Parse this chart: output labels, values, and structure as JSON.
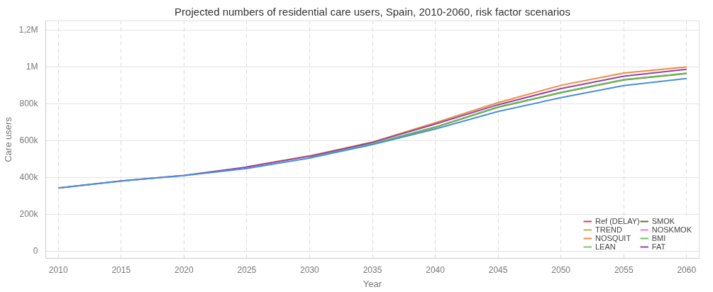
{
  "chart_data": {
    "type": "line",
    "title": "Projected numbers of residential care users, Spain, 2010-2060, risk factor scenarios",
    "xlabel": "Year",
    "ylabel": "Care users",
    "x": [
      2010,
      2015,
      2020,
      2025,
      2030,
      2035,
      2040,
      2045,
      2050,
      2055,
      2060
    ],
    "xlim": [
      2009,
      2061
    ],
    "xticks": [
      2010,
      2015,
      2020,
      2025,
      2030,
      2035,
      2040,
      2045,
      2050,
      2055,
      2060
    ],
    "ylim": [
      -40000,
      1250000
    ],
    "yticks": [
      0,
      {
        "value": 200000,
        "label": "200k"
      },
      {
        "value": 400000,
        "label": "400k"
      },
      {
        "value": 600000,
        "label": "600k"
      },
      {
        "value": 800000,
        "label": "800k"
      },
      {
        "value": 1000000,
        "label": "1M"
      },
      {
        "value": 1200000,
        "label": "1,2M"
      }
    ],
    "grid": true,
    "legend": "bottom right",
    "line_style": "solid",
    "marker": "none",
    "series": [
      {
        "name": "Ref (DELAY)",
        "color": "#e8384f",
        "values": [
          null,
          null,
          null,
          null,
          null,
          null,
          null,
          null,
          null,
          null,
          null
        ]
      },
      {
        "name": "TREND",
        "color": "#b5b53a",
        "values": [
          null,
          null,
          null,
          null,
          null,
          null,
          null,
          null,
          null,
          null,
          null
        ]
      },
      {
        "name": "NOSQUIT",
        "color": "#f5883b",
        "values": [
          null,
          null,
          null,
          458000,
          517000,
          592000,
          697000,
          806000,
          900000,
          967000,
          1000000
        ]
      },
      {
        "name": "LEAN",
        "color": "#7dc46b",
        "values": [
          null,
          null,
          null,
          null,
          null,
          null,
          null,
          null,
          null,
          null,
          null
        ]
      },
      {
        "name": "SMOK",
        "color": "#6b6b2a",
        "values": [
          null,
          null,
          null,
          null,
          509000,
          581000,
          672000,
          781000,
          860000,
          929000,
          964000
        ]
      },
      {
        "name": "NOSKMOK",
        "color": "#e87fc0",
        "values": [
          null,
          null,
          null,
          null,
          null,
          null,
          null,
          null,
          null,
          null,
          null
        ]
      },
      {
        "name": "BMI",
        "color": "#6cbf5a",
        "values": [
          null,
          null,
          null,
          null,
          510000,
          583000,
          674000,
          783000,
          862000,
          931000,
          966000
        ]
      },
      {
        "name": "FAT",
        "color": "#8e44ad",
        "values": [
          342000,
          381000,
          411000,
          456000,
          515000,
          590000,
          690000,
          795000,
          882000,
          950000,
          987000
        ]
      },
      {
        "color": "#4a8fdb",
        "values": [
          342000,
          380000,
          410000,
          448000,
          505000,
          578000,
          663000,
          758000,
          833000,
          899000,
          937000
        ]
      }
    ]
  }
}
